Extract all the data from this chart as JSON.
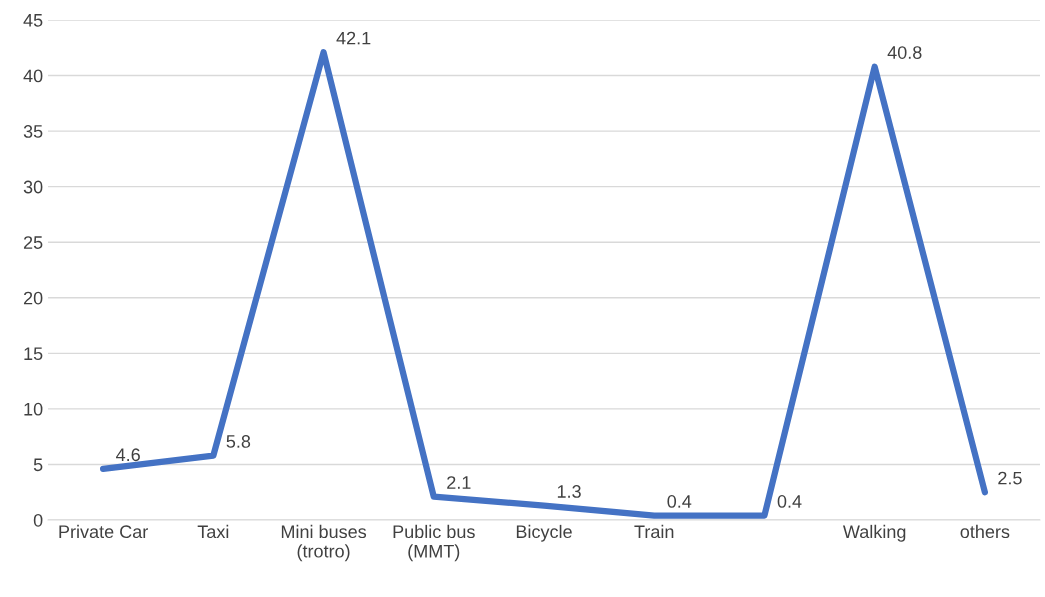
{
  "chart_data": {
    "type": "line",
    "categories": [
      "Private Car",
      "Taxi",
      "Mini buses\n(trotro)",
      "Public bus\n(MMT)",
      "Bicycle",
      "Train",
      null,
      "Walking",
      "others"
    ],
    "series": [
      {
        "color": "#4472c4",
        "values": [
          4.6,
          5.8,
          42.1,
          2.1,
          1.3,
          0.4,
          0.4,
          40.8,
          2.5
        ]
      }
    ],
    "ylim": [
      0,
      45
    ],
    "yticks": [
      0,
      5,
      10,
      15,
      20,
      25,
      30,
      35,
      40,
      45
    ],
    "grid": "y",
    "marker": "none",
    "line_style": "solid",
    "data_labels": true
  }
}
